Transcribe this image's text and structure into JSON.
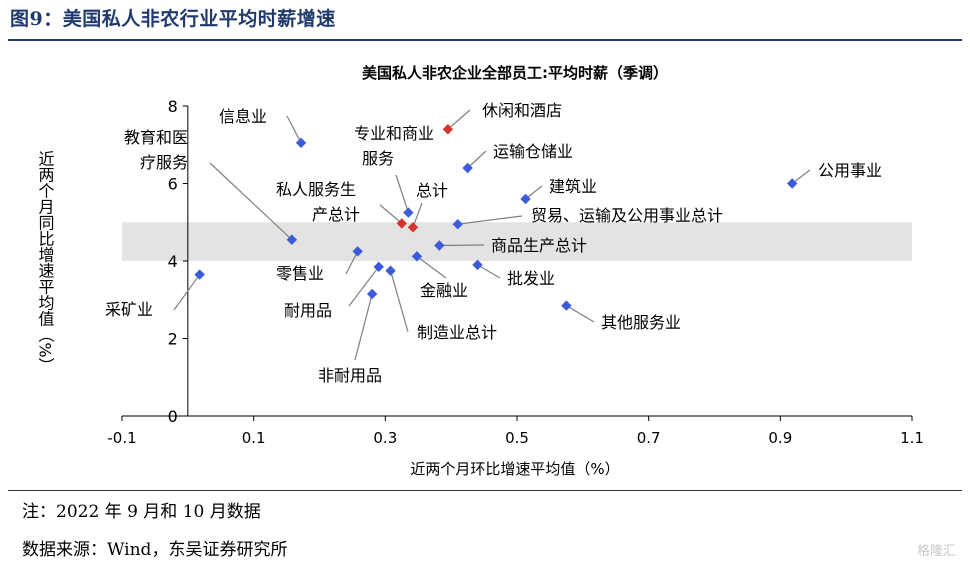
{
  "header": {
    "figure_title": "图9：美国私人非农行业平均时薪增速"
  },
  "footer": {
    "note": "注：2022 年 9 月和 10 月数据",
    "source": "数据来源：Wind，东吴证券研究所",
    "watermark": "格隆汇"
  },
  "chart_data": {
    "type": "scatter",
    "title": "美国私人非农企业全部员工:平均时薪（季调）",
    "xlabel": "近两个月环比增速平均值（%）",
    "ylabel": "近两个月同比增速平均值（%）",
    "xlim": [
      -0.1,
      1.1
    ],
    "ylim": [
      0,
      8
    ],
    "xticks": [
      "-0.1",
      "0.1",
      "0.3",
      "0.5",
      "0.7",
      "0.9",
      "1.1"
    ],
    "yticks": [
      "0",
      "2",
      "4",
      "6",
      "8"
    ],
    "grid": false,
    "shaded_band_y": [
      4.0,
      5.0
    ],
    "colors": {
      "normal": "#3b5bdb",
      "highlight": "#d6342f",
      "band": "#e3e3e3",
      "leader": "#7f7f7f"
    },
    "points": [
      {
        "label": "信息业",
        "x": 0.172,
        "y": 7.05,
        "highlight": false
      },
      {
        "label": "休闲和酒店",
        "x": 0.395,
        "y": 7.4,
        "highlight": true
      },
      {
        "label": "运输仓储业",
        "x": 0.425,
        "y": 6.4,
        "highlight": false
      },
      {
        "label": "公用事业",
        "x": 0.918,
        "y": 6.0,
        "highlight": false
      },
      {
        "label": "建筑业",
        "x": 0.513,
        "y": 5.6,
        "highlight": false
      },
      {
        "label": "教育和医疗服务",
        "x": 0.158,
        "y": 4.55,
        "highlight": false
      },
      {
        "label": "专业和商业服务",
        "x": 0.335,
        "y": 5.25,
        "highlight": false
      },
      {
        "label": "私人服务生产总计",
        "x": 0.325,
        "y": 4.97,
        "highlight": true
      },
      {
        "label": "总计",
        "x": 0.342,
        "y": 4.87,
        "highlight": true
      },
      {
        "label": "贸易、运输及公用事业总计",
        "x": 0.41,
        "y": 4.95,
        "highlight": false
      },
      {
        "label": "商品生产总计",
        "x": 0.382,
        "y": 4.4,
        "highlight": false
      },
      {
        "label": "零售业",
        "x": 0.258,
        "y": 4.25,
        "highlight": false
      },
      {
        "label": "金融业",
        "x": 0.348,
        "y": 4.12,
        "highlight": false
      },
      {
        "label": "批发业",
        "x": 0.44,
        "y": 3.9,
        "highlight": false
      },
      {
        "label": "耐用品",
        "x": 0.29,
        "y": 3.85,
        "highlight": false
      },
      {
        "label": "制造业总计",
        "x": 0.308,
        "y": 3.75,
        "highlight": false
      },
      {
        "label": "采矿业",
        "x": 0.018,
        "y": 3.65,
        "highlight": false
      },
      {
        "label": "非耐用品",
        "x": 0.28,
        "y": 3.15,
        "highlight": false
      },
      {
        "label": "其他服务业",
        "x": 0.575,
        "y": 2.85,
        "highlight": false
      }
    ]
  }
}
